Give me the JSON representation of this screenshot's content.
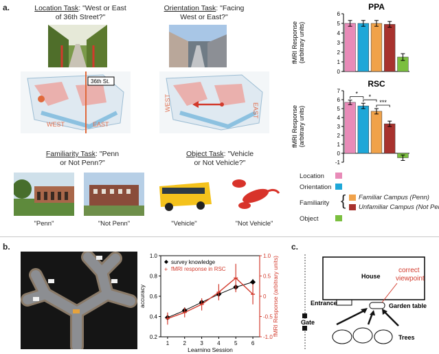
{
  "panel_a": {
    "letter": "a.",
    "location_task": {
      "name": "Location Task",
      "question": ":  \"West or East",
      "question2": "of 36th Street?\""
    },
    "orientation_task": {
      "name": "Orientation Task",
      "question": ":  \"Facing",
      "question2": "West or East?\""
    },
    "familiarity_task": {
      "name": "Familiarity Task",
      "question": ":  \"Penn",
      "question2": "or Not Penn?\""
    },
    "object_task": {
      "name": "Object Task",
      "question": ":  \"Vehicle",
      "question2": "or Not Vehicle?\""
    },
    "map_labels": {
      "street": "36th St.",
      "west": "WEST",
      "east": "EAST"
    },
    "captions": [
      "\"Penn\"",
      "\"Not Penn\"",
      "\"Vehicle\"",
      "\"Not Vehicle\""
    ],
    "legend": {
      "location": "Location",
      "orientation": "Orientation",
      "familiarity": "Familiarity",
      "familiar": "Familiar Campus (Penn)",
      "unfamiliar": "Unfamiliar Campus (Not Penn)",
      "object": "Object"
    },
    "colors": {
      "location": "#e88bb8",
      "orientation": "#1ea7d8",
      "familiar": "#f0a24a",
      "unfamiliar": "#a8322e",
      "object": "#7bbf3f"
    }
  },
  "chart_data": [
    {
      "type": "bar",
      "title": "PPA",
      "ylabel": "fMRI Response",
      "ylabel2": "(arbitrary units)",
      "categories": [
        "Location",
        "Orientation",
        "Familiar Campus (Penn)",
        "Unfamiliar Campus (Not Penn)",
        "Object"
      ],
      "values": [
        5.0,
        5.0,
        5.0,
        4.9,
        1.5
      ],
      "errors": [
        0.3,
        0.3,
        0.3,
        0.3,
        0.35
      ],
      "ylim": [
        0,
        6
      ],
      "yticks": [
        "0",
        "1",
        "2",
        "3",
        "4",
        "5",
        "6"
      ]
    },
    {
      "type": "bar",
      "title": "RSC",
      "ylabel": "fMRI Response",
      "ylabel2": "(arbitrary units)",
      "categories": [
        "Location",
        "Orientation",
        "Familiar Campus (Penn)",
        "Unfamiliar Campus (Not Penn)",
        "Object"
      ],
      "values": [
        5.7,
        5.3,
        4.7,
        3.3,
        -0.5
      ],
      "errors": [
        0.25,
        0.3,
        0.3,
        0.3,
        0.3
      ],
      "ylim": [
        -1,
        7
      ],
      "yticks": [
        "-1",
        "0",
        "1",
        "2",
        "3",
        "4",
        "5",
        "6",
        "7"
      ],
      "significance": [
        "*",
        "*",
        "***"
      ]
    },
    {
      "type": "line",
      "xlabel": "Learning Session",
      "ylabel": "accuracy",
      "ylabel_right": "fMRI Response (arbitrary units)",
      "x": [
        1,
        2,
        3,
        4,
        5,
        6
      ],
      "xticks": [
        "1",
        "2",
        "3",
        "4",
        "5",
        "6"
      ],
      "yticks_left": [
        "0.2",
        "0.4",
        "0.6",
        "0.8",
        "1.0"
      ],
      "yticks_right": [
        "-1.0",
        "-0.5",
        "0",
        "0.5",
        "1.0"
      ],
      "ylim_left": [
        0.2,
        1.0
      ],
      "ylim_right": [
        -1.0,
        1.0
      ],
      "series": [
        {
          "name": "survey knowledge",
          "values": [
            0.39,
            0.46,
            0.54,
            0.62,
            0.69,
            0.74
          ],
          "errors": [
            0.04,
            0.03,
            0.03,
            0.03,
            0.03,
            0.03
          ]
        },
        {
          "name": "fMRI response in RSC",
          "values": [
            -0.55,
            -0.4,
            -0.2,
            0.1,
            0.45,
            0.05
          ],
          "errors": [
            0.15,
            0.12,
            0.15,
            0.2,
            0.35,
            0.25
          ],
          "axis": "right"
        }
      ]
    }
  ],
  "panel_b": {
    "letter": "b."
  },
  "panel_c": {
    "letter": "c.",
    "labels": {
      "house": "House",
      "entrance": "Entrance",
      "garden": "Garden table",
      "gate": "Gate",
      "trees": "Trees",
      "viewpoint1": "correct",
      "viewpoint2": "viewpoint"
    }
  }
}
